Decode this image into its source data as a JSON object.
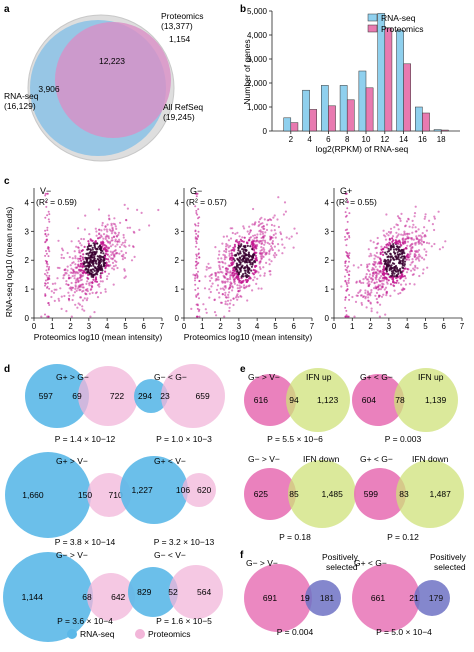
{
  "panel_labels": {
    "a": "a",
    "b": "b",
    "c": "c",
    "d": "d",
    "e": "e",
    "f": "f"
  },
  "panel_a": {
    "proteomics_label": "Proteomics",
    "proteomics_count": "(13,377)",
    "rnaseq_label": "RNA-seq",
    "rnaseq_count": "(16,129)",
    "refseq_label": "All RefSeq",
    "refseq_count": "(19,245)",
    "overlap": "12,223",
    "rnaseq_only": "3,906",
    "proteomics_only": "1,154",
    "colors": {
      "rnaseq": "#8fc3e6",
      "proteomics": "#d98ec5",
      "refseq": "#d9d9d9"
    }
  },
  "chart_data": [
    {
      "type": "bar",
      "panel": "b",
      "xlabel": "log2(RPKM) of RNA-seq",
      "ylabel": "Number of genes",
      "x_ticks": [
        "0",
        "2",
        "4",
        "6",
        "8",
        "10",
        "12",
        "14",
        "16",
        "18"
      ],
      "y_ticks": [
        "0",
        "1,000",
        "2,000",
        "3,000",
        "4,000",
        "5,000"
      ],
      "ylim": [
        0,
        5000
      ],
      "legend_position": "top-right",
      "categories": [
        "1",
        "3",
        "5",
        "7",
        "9",
        "11",
        "13",
        "15",
        "17"
      ],
      "series": [
        {
          "name": "RNA-seq",
          "color": "#8fd0ee",
          "values": [
            550,
            1700,
            1900,
            1900,
            2500,
            4900,
            4200,
            1000,
            60
          ]
        },
        {
          "name": "Proteomics",
          "color": "#e87ab0",
          "values": [
            350,
            900,
            1050,
            1300,
            1800,
            4300,
            2800,
            750,
            40
          ]
        }
      ]
    },
    {
      "type": "scatter",
      "panel": "c",
      "ylabel": "RNA-seq log10 (mean reads)",
      "x_ticks": [
        "0",
        "1",
        "2",
        "3",
        "4",
        "5",
        "6",
        "7"
      ],
      "y_ticks": [
        "0",
        "1",
        "2",
        "3",
        "4"
      ],
      "xlim": [
        0,
        7
      ],
      "ylim": [
        0,
        4.5
      ],
      "plots": [
        {
          "title": "V−",
          "r2": "(R² = 0.59)",
          "xlabel": "Proteomics log10 (mean intensity)"
        },
        {
          "title": "G−",
          "r2": "(R² = 0.57)",
          "xlabel": "Proteomics log10 (mean intensity)"
        },
        {
          "title": "G+",
          "r2": "(R² = 0.55)",
          "xlabel": ""
        }
      ]
    }
  ],
  "panel_d": {
    "legend": {
      "rnaseq": "RNA-seq",
      "proteomics": "Proteomics"
    },
    "venns": [
      {
        "title": "G+ > G−",
        "left": "597",
        "mid": "69",
        "right": "722",
        "p": "P = 1.4 × 10−12"
      },
      {
        "title": "G− < G−",
        "left": "294",
        "mid": "23",
        "right": "659",
        "p": "P = 1.0 × 10−3"
      },
      {
        "title": "G+ > V−",
        "left": "1,660",
        "mid": "150",
        "right": "710",
        "p": "P = 3.8 × 10−14"
      },
      {
        "title": "G+ < V−",
        "left": "1,227",
        "mid": "106",
        "right": "620",
        "p": "P = 3.2 × 10−13"
      },
      {
        "title": "G− > V−",
        "left": "1,144",
        "mid": "68",
        "right": "642",
        "p": "P = 3.6 × 10−4"
      },
      {
        "title": "G− < V−",
        "left": "829",
        "mid": "52",
        "right": "564",
        "p": "P = 1.6 × 10−5"
      }
    ]
  },
  "panel_e": {
    "venns": [
      {
        "title": "G− > V−",
        "set": "IFN up",
        "left": "616",
        "mid": "94",
        "right": "1,123",
        "p": "P = 5.5 × 10−6"
      },
      {
        "title": "G+ < G−",
        "set": "IFN up",
        "left": "604",
        "mid": "78",
        "right": "1,139",
        "p": "P = 0.003"
      },
      {
        "title": "G− > V−",
        "set": "IFN down",
        "left": "625",
        "mid": "85",
        "right": "1,485",
        "p": "P = 0.18"
      },
      {
        "title": "G+ < G−",
        "set": "IFN down",
        "left": "599",
        "mid": "83",
        "right": "1,487",
        "p": "P = 0.12"
      }
    ]
  },
  "panel_f": {
    "venns": [
      {
        "title": "G− > V−",
        "set": "Positively selected",
        "left": "691",
        "mid": "19",
        "right": "181",
        "p": "P = 0.004"
      },
      {
        "title": "G+ < G−",
        "set": "Positively selected",
        "left": "661",
        "mid": "21",
        "right": "179",
        "p": "P = 5.0 × 10−4"
      }
    ]
  }
}
